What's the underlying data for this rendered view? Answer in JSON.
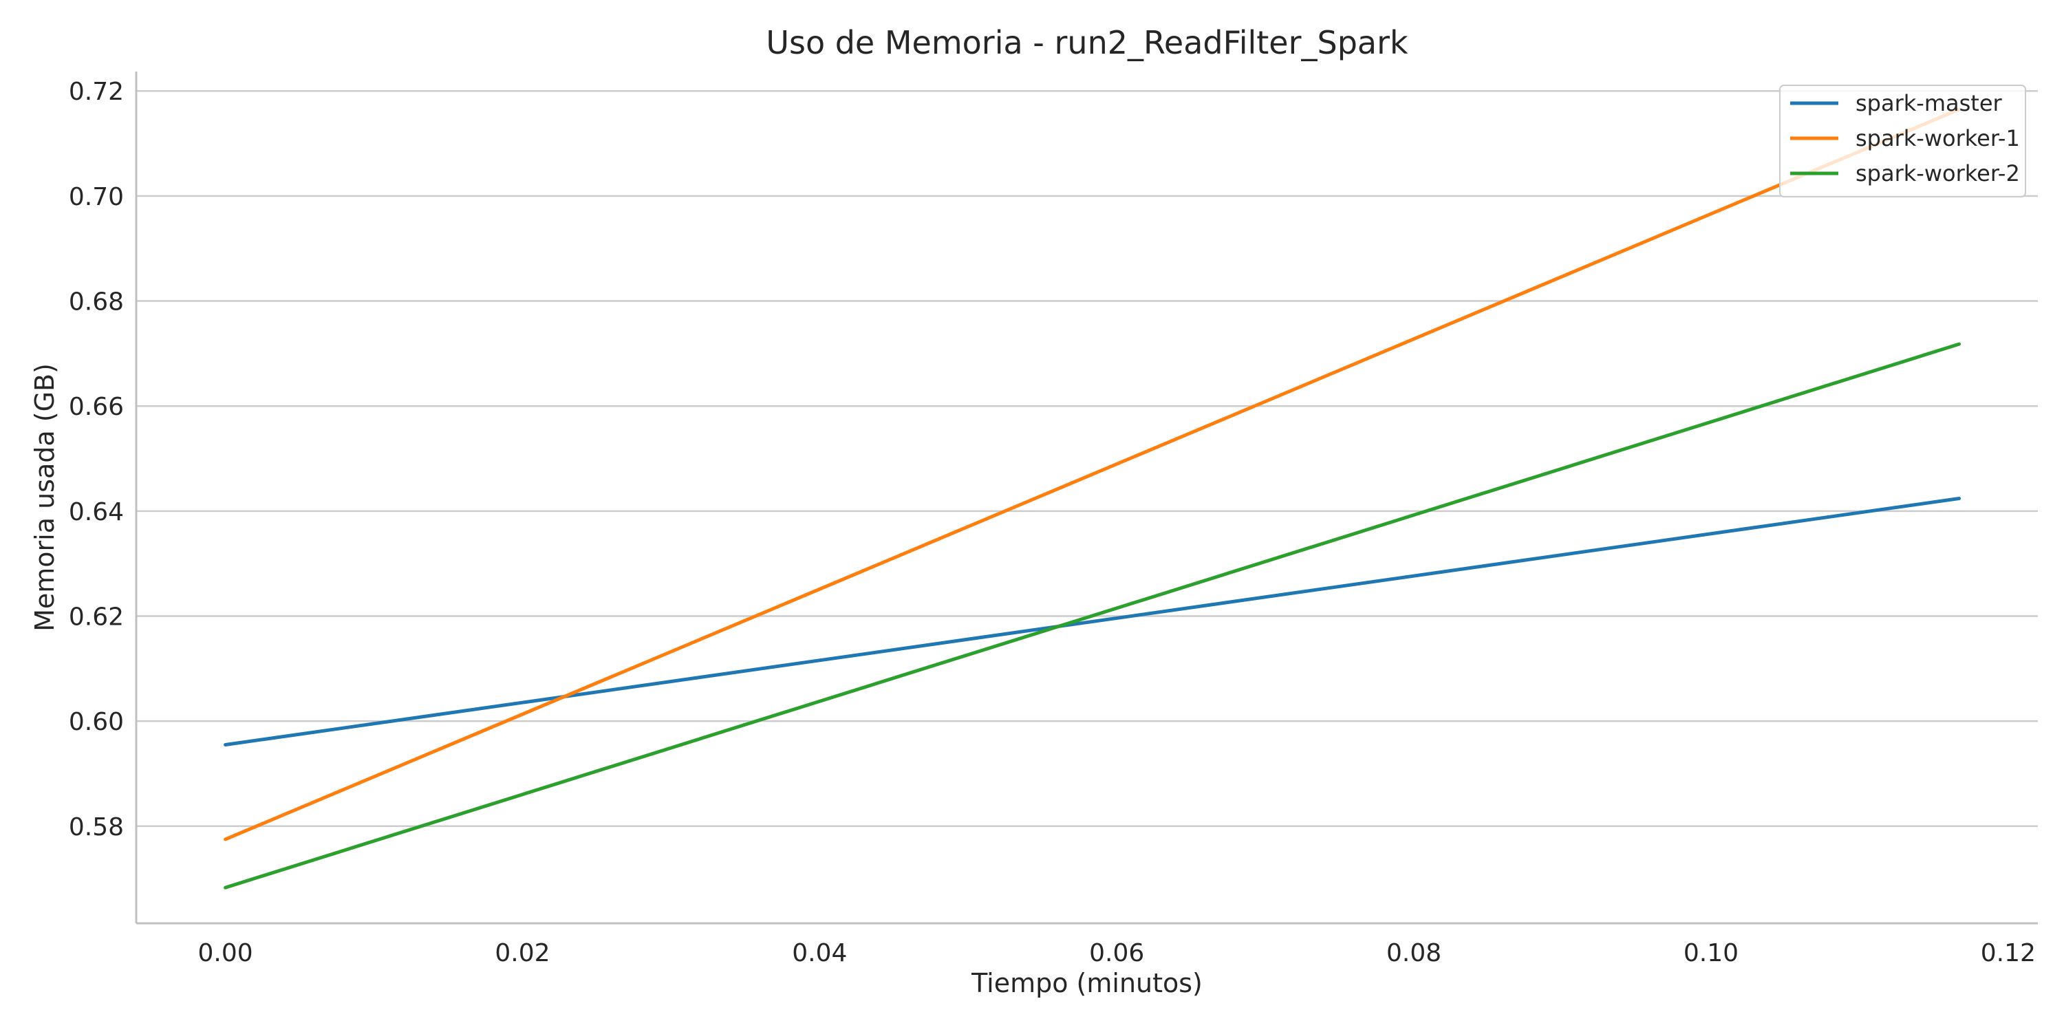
{
  "chart_data": {
    "type": "line",
    "title": "Uso de Memoria - run2_ReadFilter_Spark",
    "xlabel": "Tiempo (minutos)",
    "ylabel": "Memoria usada (GB)",
    "xlim": [
      -0.006,
      0.122
    ],
    "ylim": [
      0.5615,
      0.7237
    ],
    "x_ticks": [
      0.0,
      0.02,
      0.04,
      0.06,
      0.08,
      0.1,
      0.12
    ],
    "x_tick_labels": [
      "0.00",
      "0.02",
      "0.04",
      "0.06",
      "0.08",
      "0.10",
      "0.12"
    ],
    "y_ticks": [
      0.58,
      0.6,
      0.62,
      0.64,
      0.66,
      0.68,
      0.7,
      0.72
    ],
    "y_tick_labels": [
      "0.58",
      "0.60",
      "0.62",
      "0.64",
      "0.66",
      "0.68",
      "0.70",
      "0.72"
    ],
    "grid": "horizontal",
    "legend_position": "top-right",
    "series": [
      {
        "name": "spark-master",
        "color": "#1f77b4",
        "x": [
          0.0,
          0.1167
        ],
        "y": [
          0.5955,
          0.6424
        ]
      },
      {
        "name": "spark-worker-1",
        "color": "#ff7f0e",
        "x": [
          0.0,
          0.1167
        ],
        "y": [
          0.5775,
          0.7165
        ]
      },
      {
        "name": "spark-worker-2",
        "color": "#2ca02c",
        "x": [
          0.0,
          0.1167
        ],
        "y": [
          0.5683,
          0.6718
        ]
      }
    ]
  }
}
